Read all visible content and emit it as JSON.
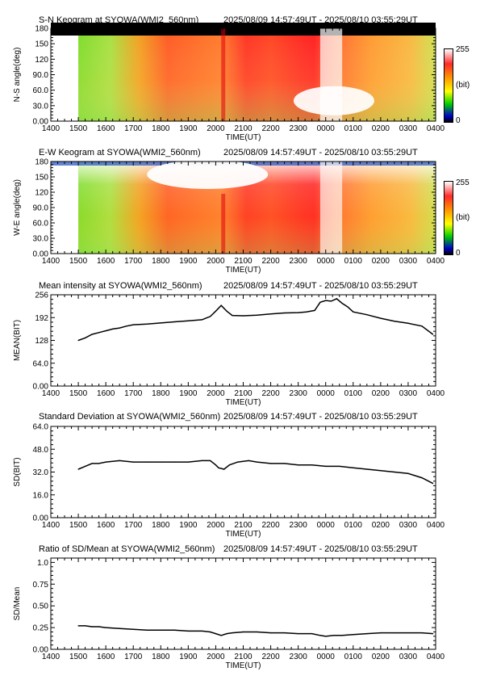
{
  "time_range": "2025/08/09 14:57:49UT - 2025/08/10 03:55:29UT",
  "colorbar": {
    "max_label": "255",
    "unit_label": "(bit)",
    "min_label": "0"
  },
  "common_x_ticks": [
    "1400",
    "1500",
    "1600",
    "1700",
    "1800",
    "1900",
    "2000",
    "2100",
    "2200",
    "2300",
    "0000",
    "0100",
    "0200",
    "0300",
    "0400"
  ],
  "x_axis_label": "TIME(UT)",
  "chart_data": [
    {
      "id": "sn",
      "type": "heatmap",
      "title": "S-N Keogram at SYOWA(WMI2_560nm)",
      "ylabel": "N-S angle(deg)",
      "xlabel": "TIME(UT)",
      "y_ticks": [
        "0.00",
        "30.0",
        "60.0",
        "90.0",
        "120",
        "150",
        "180"
      ],
      "ylim": [
        0,
        180
      ],
      "colorbar": [
        0,
        255
      ]
    },
    {
      "id": "ew",
      "type": "heatmap",
      "title": "E-W Keogram at SYOWA(WMI2_560nm)",
      "ylabel": "W-E angle(deg)",
      "xlabel": "TIME(UT)",
      "y_ticks": [
        "0.00",
        "30.0",
        "60.0",
        "90.0",
        "120",
        "150",
        "180"
      ],
      "ylim": [
        0,
        180
      ],
      "colorbar": [
        0,
        255
      ]
    },
    {
      "id": "mean",
      "type": "line",
      "title": "Mean intensity at SYOWA(WMI2_560nm)",
      "ylabel": "MEAN(BIT)",
      "xlabel": "TIME(UT)",
      "y_ticks": [
        "0.00",
        "64.0",
        "128",
        "192",
        "256"
      ],
      "ylim": [
        0,
        256
      ],
      "x": [
        15.0,
        15.25,
        15.5,
        15.75,
        16.0,
        16.25,
        16.5,
        16.75,
        17.0,
        17.5,
        18.0,
        18.5,
        19.0,
        19.5,
        19.8,
        20.0,
        20.2,
        20.4,
        20.6,
        21.0,
        21.5,
        22.0,
        22.5,
        23.0,
        23.3,
        23.6,
        23.8,
        24.0,
        24.2,
        24.4,
        24.6,
        24.8,
        25.0,
        25.5,
        26.0,
        26.5,
        27.0,
        27.5,
        27.9
      ],
      "y": [
        128,
        135,
        145,
        150,
        155,
        160,
        163,
        168,
        172,
        174,
        177,
        180,
        183,
        186,
        195,
        210,
        226,
        210,
        198,
        197,
        199,
        202,
        205,
        206,
        208,
        212,
        235,
        240,
        238,
        245,
        232,
        222,
        208,
        200,
        190,
        182,
        176,
        168,
        145
      ]
    },
    {
      "id": "sd",
      "type": "line",
      "title": "Standard Deviation at SYOWA(WMI2_560nm)",
      "ylabel": "SD(BIT)",
      "xlabel": "TIME(UT)",
      "y_ticks": [
        "0.00",
        "16.0",
        "32.0",
        "48.0",
        "64.0"
      ],
      "ylim": [
        0,
        64
      ],
      "x": [
        15.0,
        15.25,
        15.5,
        15.75,
        16.0,
        16.5,
        17.0,
        17.5,
        18.0,
        18.5,
        19.0,
        19.5,
        19.8,
        20.0,
        20.1,
        20.3,
        20.5,
        20.8,
        21.2,
        21.5,
        22.0,
        22.5,
        23.0,
        23.5,
        24.0,
        24.5,
        25.0,
        25.5,
        26.0,
        26.5,
        27.0,
        27.5,
        27.9
      ],
      "y": [
        34,
        36,
        38,
        38,
        39,
        40,
        39,
        39,
        39,
        39,
        39,
        40,
        40,
        37,
        35,
        34,
        37,
        39,
        40,
        39,
        38,
        38,
        37,
        37,
        36,
        36,
        35,
        34,
        33,
        32,
        31,
        28,
        24
      ]
    },
    {
      "id": "ratio",
      "type": "line",
      "title": "Ratio of SD/Mean at SYOWA(WMI2_560nm)",
      "ylabel": "SD/Mean",
      "xlabel": "TIME(UT)",
      "y_ticks": [
        "0.00",
        "0.25",
        "0.50",
        "0.75",
        "1.0"
      ],
      "ylim": [
        0,
        1.05
      ],
      "x": [
        15.0,
        15.25,
        15.5,
        15.75,
        16.0,
        16.5,
        17.0,
        17.5,
        18.0,
        18.5,
        19.0,
        19.5,
        19.8,
        20.0,
        20.2,
        20.4,
        20.6,
        21.0,
        21.5,
        22.0,
        22.5,
        23.0,
        23.5,
        23.8,
        24.0,
        24.3,
        24.6,
        25.0,
        25.5,
        26.0,
        26.5,
        27.0,
        27.5,
        27.9
      ],
      "y": [
        0.27,
        0.27,
        0.26,
        0.26,
        0.25,
        0.24,
        0.23,
        0.22,
        0.22,
        0.22,
        0.21,
        0.21,
        0.2,
        0.18,
        0.16,
        0.18,
        0.19,
        0.2,
        0.2,
        0.19,
        0.19,
        0.18,
        0.18,
        0.16,
        0.15,
        0.16,
        0.16,
        0.17,
        0.18,
        0.19,
        0.19,
        0.19,
        0.19,
        0.18
      ]
    }
  ]
}
